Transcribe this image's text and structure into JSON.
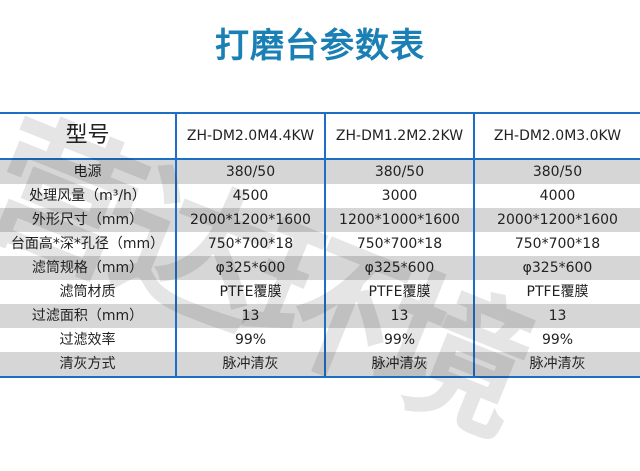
{
  "title": "打磨台参数表",
  "watermark": "营达环境",
  "colors": {
    "title": "#1a7fb5",
    "border": "#1c6fc4",
    "stripe": "#d0d0d0"
  },
  "table": {
    "header": [
      "型号",
      "ZH-DM2.0M4.4KW",
      "ZH-DM1.2M2.2KW",
      "ZH-DM2.0M3.0KW"
    ],
    "rows": [
      [
        "电源",
        "380/50",
        "380/50",
        "380/50"
      ],
      [
        "处理风量（m³/h）",
        "4500",
        "3000",
        "4000"
      ],
      [
        "外形尺寸（mm）",
        "2000*1200*1600",
        "1200*1000*1600",
        "2000*1200*1600"
      ],
      [
        "台面高*深*孔径（mm）",
        "750*700*18",
        "750*700*18",
        "750*700*18"
      ],
      [
        "滤筒规格（mm）",
        "φ325*600",
        "φ325*600",
        "φ325*600"
      ],
      [
        "滤筒材质",
        "PTFE覆膜",
        "PTFE覆膜",
        "PTFE覆膜"
      ],
      [
        "过滤面积（mm）",
        "13",
        "13",
        "13"
      ],
      [
        "过滤效率",
        "99%",
        "99%",
        "99%"
      ],
      [
        "清灰方式",
        "脉冲清灰",
        "脉冲清灰",
        "脉冲清灰"
      ]
    ]
  }
}
